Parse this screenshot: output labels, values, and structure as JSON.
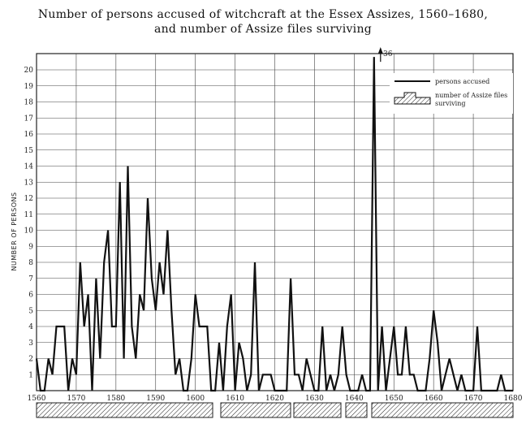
{
  "chart_data": {
    "type": "line",
    "title": "Number of persons accused of witchcraft at the Essex Assizes, 1560–1680,",
    "subtitle": "and number of Assize files surviving",
    "ylabel": "NUMBER OF PERSONS",
    "xlabel": "",
    "xlim": [
      1560,
      1680
    ],
    "ylim": [
      0,
      20
    ],
    "x_ticks": [
      1560,
      1570,
      1580,
      1590,
      1600,
      1610,
      1620,
      1630,
      1640,
      1650,
      1660,
      1670,
      1680
    ],
    "y_ticks": [
      1,
      2,
      3,
      4,
      5,
      6,
      7,
      8,
      9,
      10,
      11,
      12,
      13,
      14,
      15,
      16,
      17,
      18,
      19,
      20
    ],
    "grid": true,
    "legend_position": "top-right",
    "series": [
      {
        "name": "persons accused",
        "x": [
          1560,
          1561,
          1562,
          1563,
          1564,
          1565,
          1566,
          1567,
          1568,
          1569,
          1570,
          1571,
          1572,
          1573,
          1574,
          1575,
          1576,
          1577,
          1578,
          1579,
          1580,
          1581,
          1582,
          1583,
          1584,
          1585,
          1586,
          1587,
          1588,
          1589,
          1590,
          1591,
          1592,
          1593,
          1594,
          1595,
          1596,
          1597,
          1598,
          1599,
          1600,
          1601,
          1602,
          1603,
          1604,
          1605,
          1606,
          1607,
          1608,
          1609,
          1610,
          1611,
          1612,
          1613,
          1614,
          1615,
          1616,
          1617,
          1618,
          1619,
          1620,
          1621,
          1622,
          1623,
          1624,
          1625,
          1626,
          1627,
          1628,
          1629,
          1630,
          1631,
          1632,
          1633,
          1634,
          1635,
          1636,
          1637,
          1638,
          1639,
          1640,
          1641,
          1642,
          1643,
          1644,
          1645,
          1646,
          1647,
          1648,
          1649,
          1650,
          1651,
          1652,
          1653,
          1654,
          1655,
          1656,
          1657,
          1658,
          1659,
          1660,
          1661,
          1662,
          1663,
          1664,
          1665,
          1666,
          1667,
          1668,
          1669,
          1670,
          1671,
          1672,
          1673,
          1674,
          1675,
          1676,
          1677,
          1678,
          1679,
          1680
        ],
        "y": [
          2,
          0,
          0,
          2,
          1,
          4,
          4,
          4,
          0,
          2,
          1,
          8,
          4,
          6,
          0,
          7,
          2,
          8,
          10,
          4,
          4,
          13,
          2,
          14,
          4,
          2,
          6,
          5,
          12,
          7,
          5,
          8,
          6,
          10,
          5,
          1,
          2,
          0,
          0,
          2,
          6,
          4,
          4,
          4,
          0,
          0,
          3,
          0,
          4,
          6,
          0,
          3,
          2,
          0,
          1,
          8,
          0,
          1,
          1,
          1,
          0,
          0,
          0,
          0,
          7,
          1,
          1,
          0,
          2,
          1,
          0,
          0,
          4,
          0,
          1,
          0,
          1,
          4,
          1,
          0,
          0,
          0,
          1,
          0,
          0,
          21,
          0,
          4,
          0,
          2,
          4,
          1,
          1,
          4,
          1,
          1,
          0,
          0,
          0,
          2,
          5,
          3,
          0,
          1,
          2,
          1,
          0,
          1,
          0,
          0,
          0,
          4,
          0,
          0,
          0,
          0,
          0,
          1,
          0,
          0,
          0
        ]
      }
    ],
    "annotations": [
      "36"
    ],
    "legend": [
      {
        "name": "persons accused"
      },
      {
        "name": "number of Assize files surviving"
      }
    ]
  }
}
